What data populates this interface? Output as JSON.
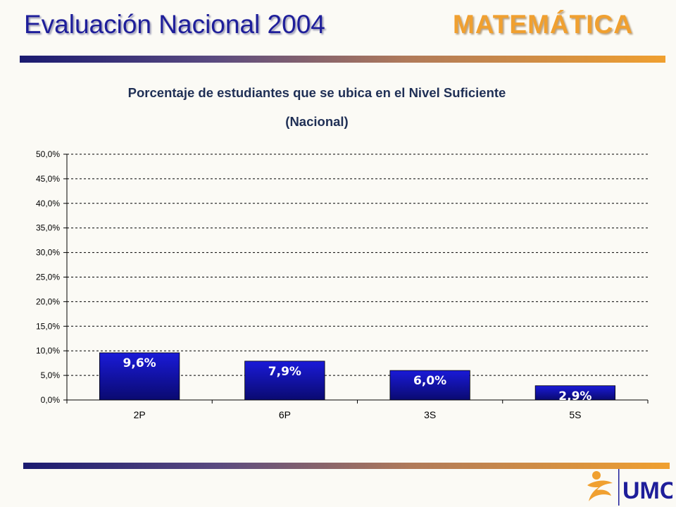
{
  "header": {
    "title": "Evaluación Nacional 2004",
    "subject": "MATEMÁTICA"
  },
  "chart_data": {
    "type": "bar",
    "title": "Porcentaje de estudiantes que se ubica en el Nivel Suficiente",
    "subtitle": "(Nacional)",
    "categories": [
      "2P",
      "6P",
      "3S",
      "5S"
    ],
    "values": [
      9.6,
      7.9,
      6.0,
      2.9
    ],
    "data_labels": [
      "9,6%",
      "7,9%",
      "6,0%",
      "2,9%"
    ],
    "ylim": [
      0,
      50
    ],
    "yticks": [
      0,
      5,
      10,
      15,
      20,
      25,
      30,
      35,
      40,
      45,
      50
    ],
    "ytick_labels": [
      "0,0%",
      "5,0%",
      "10,0%",
      "15,0%",
      "20,0%",
      "25,0%",
      "30,0%",
      "35,0%",
      "40,0%",
      "45,0%",
      "50,0%"
    ],
    "grid": true,
    "bar_color": "#1414C8"
  },
  "logo": {
    "text": "UMC",
    "colors": {
      "figure": "#F0A030",
      "text": "#1E1E9A"
    }
  },
  "theme": {
    "title_color": "#1E1E9A",
    "subject_color": "#F0A030",
    "background": "#FBFAF5"
  }
}
